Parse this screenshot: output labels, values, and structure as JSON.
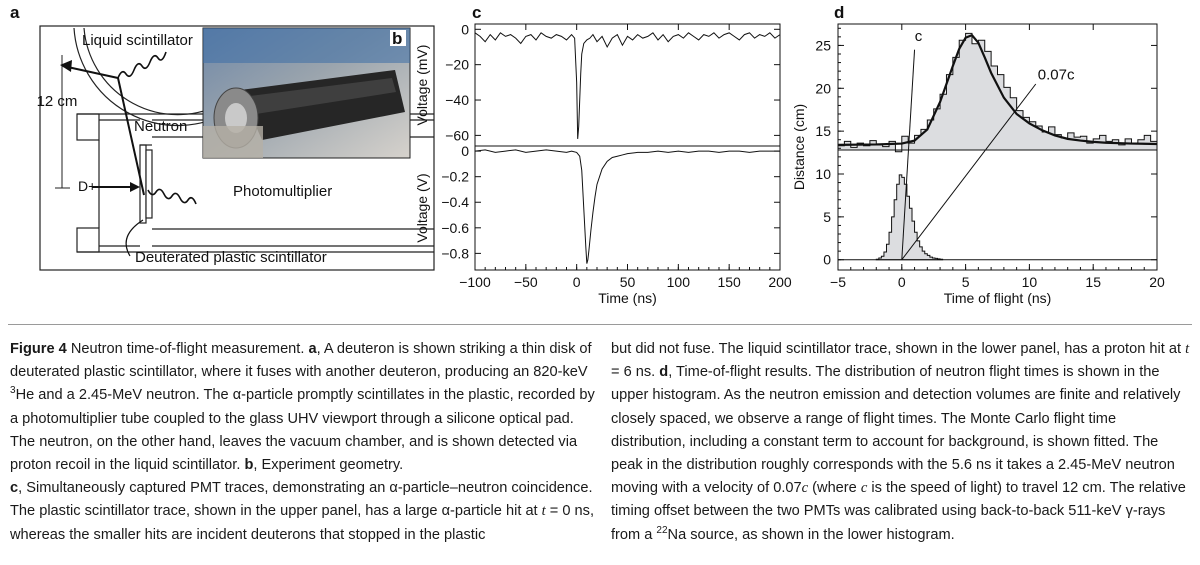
{
  "panels": {
    "a": "a",
    "b": "b",
    "c": "c",
    "d": "d"
  },
  "diagram": {
    "labels": {
      "liquid_scintillator": "Liquid scintillator",
      "distance": "12 cm",
      "neutron": "Neutron",
      "deuteron": "D+",
      "photomultiplier": "Photomultiplier",
      "deuterated": "Deuterated plastic scintillator"
    }
  },
  "chart_data": [
    {
      "id": "c-upper",
      "type": "line",
      "ylabel": "Voltage (mV)",
      "xlim": [
        -100,
        200
      ],
      "ylim": [
        -66,
        3
      ],
      "yticks": [
        0,
        -20,
        -40,
        -60
      ],
      "x": [
        -100,
        -95,
        -90,
        -85,
        -80,
        -75,
        -70,
        -65,
        -60,
        -55,
        -50,
        -45,
        -40,
        -35,
        -30,
        -25,
        -20,
        -15,
        -10,
        -5,
        -2,
        0,
        1,
        2,
        3,
        4,
        5,
        7,
        10,
        13,
        16,
        20,
        25,
        30,
        35,
        40,
        45,
        50,
        55,
        60,
        65,
        70,
        75,
        80,
        85,
        90,
        95,
        100,
        105,
        110,
        115,
        120,
        125,
        130,
        135,
        140,
        145,
        150,
        155,
        160,
        165,
        170,
        175,
        180,
        185,
        190,
        195,
        200
      ],
      "y": [
        -2,
        -4,
        -7,
        -3,
        -6,
        -2,
        -4,
        -3,
        -5,
        -8,
        -4,
        -3,
        -6,
        -2,
        -4,
        -5,
        -3,
        -4,
        -6,
        -3,
        -5,
        -30,
        -62,
        -55,
        -40,
        -25,
        -14,
        -8,
        -6,
        -5,
        -3,
        -7,
        -4,
        -10,
        -5,
        -3,
        -9,
        -4,
        -6,
        -3,
        -5,
        -4,
        -2,
        -6,
        -3,
        -7,
        -4,
        -3,
        -5,
        -2,
        -4,
        -6,
        -3,
        -4,
        -2,
        -5,
        -3,
        -2,
        -4,
        -6,
        -3,
        -2,
        -5,
        -3,
        -4,
        -2,
        -5,
        -3
      ]
    },
    {
      "id": "c-lower",
      "type": "line",
      "ylabel": "Voltage (V)",
      "xlabel": "Time (ns)",
      "xlim": [
        -100,
        200
      ],
      "ylim": [
        -0.93,
        0.04
      ],
      "xticks": [
        -100,
        -50,
        0,
        50,
        100,
        150,
        200
      ],
      "yticks": [
        0,
        -0.2,
        -0.4,
        -0.6,
        -0.8
      ],
      "x": [
        -100,
        -90,
        -80,
        -70,
        -60,
        -50,
        -40,
        -30,
        -20,
        -10,
        -5,
        0,
        3,
        5,
        7,
        9,
        10,
        11,
        12,
        14,
        16,
        18,
        20,
        25,
        30,
        35,
        40,
        45,
        50,
        60,
        70,
        80,
        90,
        100,
        110,
        120,
        130,
        140,
        150,
        160,
        170,
        180,
        190,
        200
      ],
      "y": [
        0,
        0.01,
        -0.01,
        0,
        0.01,
        -0.01,
        0,
        0.01,
        0,
        -0.01,
        0,
        -0.01,
        -0.04,
        -0.15,
        -0.45,
        -0.75,
        -0.88,
        -0.85,
        -0.78,
        -0.62,
        -0.48,
        -0.36,
        -0.26,
        -0.14,
        -0.08,
        -0.05,
        -0.04,
        -0.03,
        -0.02,
        -0.01,
        -0.01,
        0,
        -0.01,
        0,
        -0.01,
        0,
        0,
        -0.01,
        0,
        0,
        -0.01,
        0,
        0,
        0
      ]
    },
    {
      "id": "d-histograms",
      "type": "area",
      "xlabel": "Time of flight (ns)",
      "ylabel": "Distance (cm)",
      "xlim": [
        -5,
        20
      ],
      "ylim": [
        -1.2,
        27.5
      ],
      "xticks": [
        -5,
        0,
        5,
        10,
        15,
        20
      ],
      "yticks": [
        0,
        5,
        10,
        15,
        20,
        25
      ],
      "upper_histogram": {
        "baseline": 12.8,
        "x": [
          -5,
          -4.5,
          -4,
          -3.5,
          -3,
          -2.5,
          -2,
          -1.5,
          -1,
          -0.5,
          0,
          0.5,
          1,
          1.5,
          2,
          2.5,
          3,
          3.5,
          4,
          4.5,
          5,
          5.5,
          6,
          6.5,
          7,
          7.5,
          8,
          8.5,
          9,
          9.5,
          10,
          10.5,
          11,
          11.5,
          12,
          12.5,
          13,
          13.5,
          14,
          14.5,
          15,
          15.5,
          16,
          16.5,
          17,
          17.5,
          18,
          18.5,
          19,
          19.5
        ],
        "y": [
          13.3,
          13.8,
          13.1,
          13.6,
          13.3,
          13.9,
          13.4,
          13.2,
          13.8,
          12.6,
          14.4,
          13.6,
          14.5,
          15.2,
          16.3,
          17.6,
          19.3,
          21.6,
          23.6,
          25.6,
          26.4,
          25.2,
          25.6,
          24.3,
          22.6,
          21.6,
          20.1,
          18.9,
          17.4,
          16.6,
          16.1,
          15.6,
          14.9,
          15.5,
          14.6,
          14.2,
          14.8,
          14.3,
          14.4,
          13.6,
          14.1,
          14.5,
          13.8,
          14.0,
          13.4,
          14.1,
          13.6,
          14.0,
          14.5,
          13.8
        ]
      },
      "fit": {
        "x": [
          -5,
          -2,
          0,
          1,
          2,
          3,
          4,
          4.5,
          5,
          5.5,
          6,
          6.5,
          7,
          8,
          9,
          10,
          11,
          12,
          13,
          14,
          15,
          16,
          18,
          20
        ],
        "y": [
          13.4,
          13.45,
          13.55,
          13.9,
          15.2,
          18.4,
          22.6,
          24.6,
          25.9,
          26.2,
          25.3,
          23.6,
          21.8,
          18.9,
          17.0,
          15.9,
          15.1,
          14.5,
          14.1,
          13.9,
          13.75,
          13.65,
          13.55,
          13.5
        ]
      },
      "lower_histogram": {
        "baseline": 0,
        "x": [
          -2,
          -1.8,
          -1.6,
          -1.4,
          -1.2,
          -1,
          -0.8,
          -0.6,
          -0.4,
          -0.2,
          0,
          0.2,
          0.4,
          0.6,
          0.8,
          1,
          1.2,
          1.4,
          1.6,
          1.8,
          2,
          2.2,
          2.4,
          2.6,
          2.8,
          3
        ],
        "y": [
          0.05,
          0.2,
          0.4,
          0.9,
          1.8,
          3.2,
          5.0,
          7.0,
          8.8,
          9.9,
          9.6,
          8.8,
          7.4,
          6.0,
          4.5,
          3.2,
          2.2,
          1.5,
          1.0,
          0.7,
          0.5,
          0.3,
          0.2,
          0.15,
          0.1,
          0.05
        ]
      },
      "lines": [
        {
          "label": "c",
          "x": [
            0,
            1
          ]
        },
        {
          "label": "0.07c",
          "x": [
            0,
            10.5
          ]
        }
      ]
    }
  ],
  "caption": {
    "left": {
      "fig_label": "Figure 4",
      "p1_title": " Neutron time-of-flight measurement. ",
      "a": "a",
      "p1_a_text": ", A deuteron is shown striking a thin disk of deuterated plastic scintillator, where it fuses with another deuteron, producing an 820-keV ",
      "sup3": "3",
      "p1_a_text2": "He and a 2.45-MeV neutron. The ",
      "alpha": "α",
      "p1_a_text3": "-particle promptly scintillates in the plastic, recorded by a photomultiplier tube coupled to the glass UHV viewport through a silicone optical pad. The neutron, on the other hand, leaves the vacuum chamber, and is shown detected via proton recoil in the liquid scintillator. ",
      "b": "b",
      "p1_b_text": ", Experiment geometry.",
      "c": "c",
      "p2_text": ", Simultaneously captured PMT traces, demonstrating an ",
      "alpha2": "α",
      "p2_text2": "-particle–neutron coincidence. The plastic scintillator trace, shown in the upper panel, has a large ",
      "alpha3": "α",
      "p2_text3": "-particle hit at ",
      "t": "t",
      "p2_text4": " = 0 ns, whereas the smaller hits are incident deuterons that stopped in the plastic"
    },
    "right": {
      "r1": "but did not fuse. The liquid scintillator trace, shown in the lower panel, has a proton hit at ",
      "t": "t",
      "r2": " = 6 ns. ",
      "d": "d",
      "r3": ", Time-of-flight results. The distribution of neutron flight times is shown in the upper histogram. As the neutron emission and detection volumes are finite and relatively closely spaced, we observe a range of flight times. The Monte Carlo flight time distribution, including a constant term to account for background, is shown fitted. The peak in the distribution roughly corresponds with the 5.6 ns it takes a 2.45-MeV neutron moving with a velocity of 0.07",
      "c1": "c",
      "r4": " (where ",
      "c2": "c",
      "r5": " is the speed of light) to travel 12 cm. The relative timing offset between the two PMTs was calibrated using back-to-back 511-keV ",
      "gamma": "γ",
      "r6": "-rays from a ",
      "sup22": "22",
      "r7": "Na source, as shown in the lower histogram."
    }
  }
}
